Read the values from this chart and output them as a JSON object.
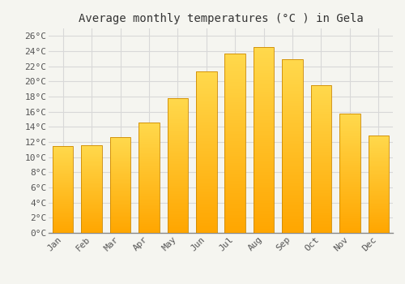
{
  "title": "Average monthly temperatures (°C ) in Gela",
  "months": [
    "Jan",
    "Feb",
    "Mar",
    "Apr",
    "May",
    "Jun",
    "Jul",
    "Aug",
    "Sep",
    "Oct",
    "Nov",
    "Dec"
  ],
  "temperatures": [
    11.5,
    11.6,
    12.6,
    14.6,
    17.8,
    21.3,
    23.7,
    24.5,
    22.9,
    19.5,
    15.7,
    12.9
  ],
  "bar_color_top": "#FFD060",
  "bar_color_bottom": "#FFA500",
  "bar_color_mid": "#FFB800",
  "background_color": "#F5F5F0",
  "plot_bg_color": "#F5F5F0",
  "grid_color": "#D8D8D8",
  "ylim": [
    0,
    27
  ],
  "yticks": [
    0,
    2,
    4,
    6,
    8,
    10,
    12,
    14,
    16,
    18,
    20,
    22,
    24,
    26
  ],
  "ytick_labels": [
    "0°C",
    "2°C",
    "4°C",
    "6°C",
    "8°C",
    "10°C",
    "12°C",
    "14°C",
    "16°C",
    "18°C",
    "20°C",
    "22°C",
    "24°C",
    "26°C"
  ],
  "title_fontsize": 10,
  "tick_fontsize": 8,
  "font_family": "monospace"
}
